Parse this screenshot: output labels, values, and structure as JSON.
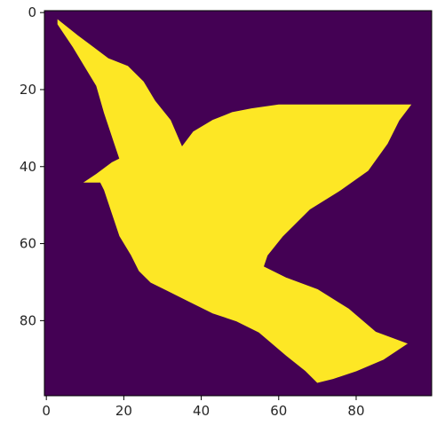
{
  "chart_data": {
    "type": "heatmap",
    "title": "",
    "xlabel": "",
    "ylabel": "",
    "xlim": [
      -0.5,
      99.5
    ],
    "ylim": [
      99.5,
      -0.5
    ],
    "x_ticks": [
      0,
      20,
      40,
      60,
      80
    ],
    "y_ticks": [
      0,
      20,
      40,
      60,
      80
    ],
    "x_tick_labels": [
      "0",
      "20",
      "40",
      "60",
      "80"
    ],
    "y_tick_labels": [
      "0",
      "20",
      "40",
      "60",
      "80"
    ],
    "colormap": "viridis",
    "value_colors": {
      "0": "#440154",
      "1": "#fde725"
    },
    "grid": false,
    "legend": "none",
    "rows": 100,
    "cols": 100,
    "mask_outline": [
      [
        3,
        2
      ],
      [
        8,
        6
      ],
      [
        12,
        9
      ],
      [
        16,
        12
      ],
      [
        21,
        14
      ],
      [
        25,
        18
      ],
      [
        28,
        23
      ],
      [
        32,
        28
      ],
      [
        35,
        35
      ],
      [
        38,
        31
      ],
      [
        43,
        28
      ],
      [
        48,
        26
      ],
      [
        53,
        25
      ],
      [
        60,
        24
      ],
      [
        75,
        24
      ],
      [
        94,
        24
      ],
      [
        91,
        28
      ],
      [
        88,
        34
      ],
      [
        83,
        41
      ],
      [
        76,
        46
      ],
      [
        68,
        51
      ],
      [
        61,
        58
      ],
      [
        57,
        63
      ],
      [
        56,
        66
      ],
      [
        62,
        69
      ],
      [
        70,
        72
      ],
      [
        78,
        77
      ],
      [
        85,
        83
      ],
      [
        93,
        86
      ],
      [
        87,
        90
      ],
      [
        80,
        93
      ],
      [
        74,
        95
      ],
      [
        70,
        96
      ],
      [
        67,
        93
      ],
      [
        62,
        89
      ],
      [
        55,
        83
      ],
      [
        49,
        80
      ],
      [
        43,
        78
      ],
      [
        37,
        75
      ],
      [
        31,
        72
      ],
      [
        27,
        70
      ],
      [
        24,
        67
      ],
      [
        22,
        63
      ],
      [
        19,
        58
      ],
      [
        17,
        52
      ],
      [
        15,
        46
      ],
      [
        14,
        44
      ],
      [
        10,
        44
      ],
      [
        13,
        42
      ],
      [
        17,
        39
      ],
      [
        19,
        38
      ],
      [
        17,
        32
      ],
      [
        15,
        26
      ],
      [
        13,
        19
      ],
      [
        10,
        14
      ],
      [
        7,
        9
      ],
      [
        3,
        3
      ]
    ]
  }
}
